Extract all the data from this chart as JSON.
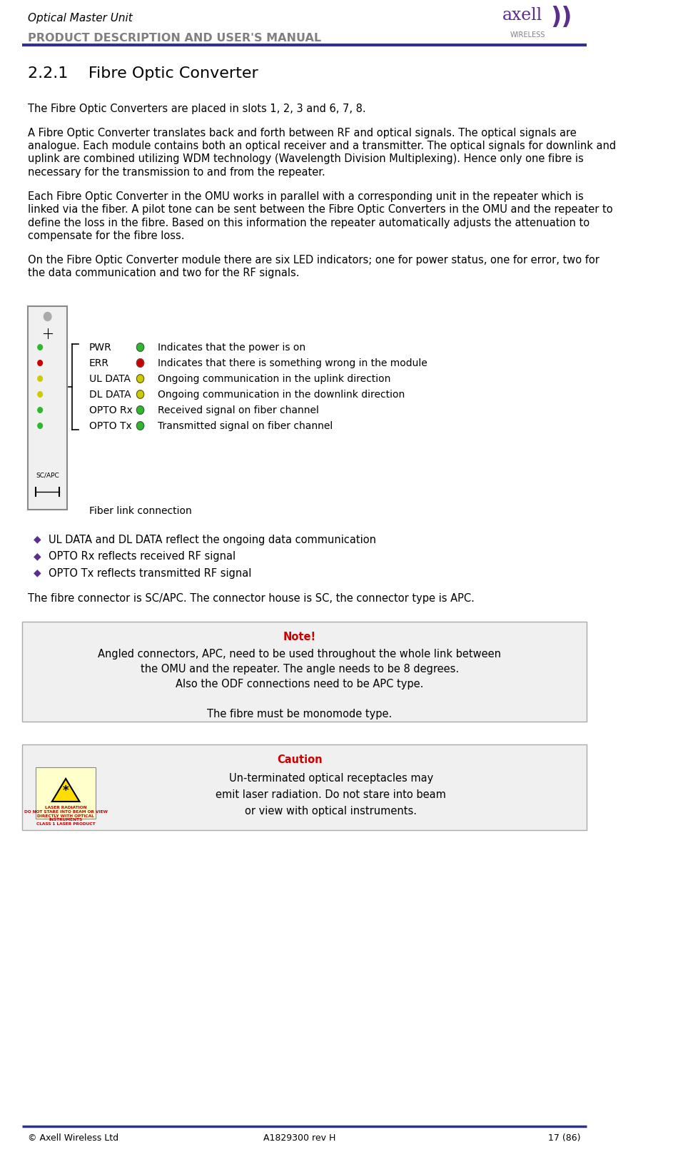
{
  "page_width": 9.57,
  "page_height": 16.14,
  "bg_color": "#ffffff",
  "header_title": "Optical Master Unit",
  "header_subtitle": "PRODUCT DESCRIPTION AND USER'S MANUAL",
  "header_line_color": "#2e3192",
  "header_title_color": "#000000",
  "header_subtitle_color": "#808080",
  "logo_color_axell": "#5b2d8e",
  "section_title": "2.2.1    Fibre Optic Converter",
  "section_title_fontsize": 16,
  "body_fontsize": 10.5,
  "body_color": "#000000",
  "para1": "The Fibre Optic Converters are placed in slots 1, 2, 3 and 6, 7, 8.",
  "para2": "A Fibre Optic Converter translates back and forth between RF and optical signals. The optical signals are\nanalogue. Each module contains both an optical receiver and a transmitter. The optical signals for downlink and\nuplink are combined utilizing WDM technology (Wavelength Division Multiplexing). Hence only one fibre is\nnecessary for the transmission to and from the repeater.",
  "para3": "Each Fibre Optic Converter in the OMU works in parallel with a corresponding unit in the repeater which is\nlinked via the fiber. A pilot tone can be sent between the Fibre Optic Converters in the OMU and the repeater to\ndefine the loss in the fibre. Based on this information the repeater automatically adjusts the attenuation to\ncompensate for the fibre loss.",
  "para4": "On the Fibre Optic Converter module there are six LED indicators; one for power status, one for error, two for\nthe data communication and two for the RF signals.",
  "led_labels": [
    "PWR",
    "ERR",
    "UL DATA",
    "DL DATA",
    "OPTO Rx",
    "OPTO Tx"
  ],
  "led_colors": [
    "#2db82d",
    "#cc0000",
    "#cccc00",
    "#cccc00",
    "#2db82d",
    "#2db82d"
  ],
  "led_descriptions": [
    "Indicates that the power is on",
    "Indicates that there is something wrong in the module",
    "Ongoing communication in the uplink direction",
    "Ongoing communication in the downlink direction",
    "Received signal on fiber channel",
    "Transmitted signal on fiber channel"
  ],
  "fiber_link_text": "Fiber link connection",
  "bullet_points": [
    "UL DATA and DL DATA reflect the ongoing data communication",
    "OPTO Rx reflects received RF signal",
    "OPTO Tx reflects transmitted RF signal"
  ],
  "connector_text": "The fibre connector is SC/APC. The connector house is SC, the connector type is APC.",
  "note_title": "Note!",
  "note_title_color": "#cc0000",
  "note_text": "Angled connectors, APC, need to be used throughout the whole link between\nthe OMU and the repeater. The angle needs to be 8 degrees.\nAlso the ODF connections need to be APC type.\n\nThe fibre must be monomode type.",
  "note_box_color": "#f0f0f0",
  "note_box_border": "#aaaaaa",
  "caution_title": "Caution",
  "caution_title_color": "#cc0000",
  "caution_text": "Un-terminated optical receptacles may\nemit laser radiation. Do not stare into beam\nor view with optical instruments.",
  "caution_box_color": "#f0f0f0",
  "caution_box_border": "#aaaaaa",
  "footer_left": "© Axell Wireless Ltd",
  "footer_center": "A1829300 rev H",
  "footer_right": "17 (86)",
  "footer_line_color": "#2e3192",
  "footer_color": "#000000"
}
